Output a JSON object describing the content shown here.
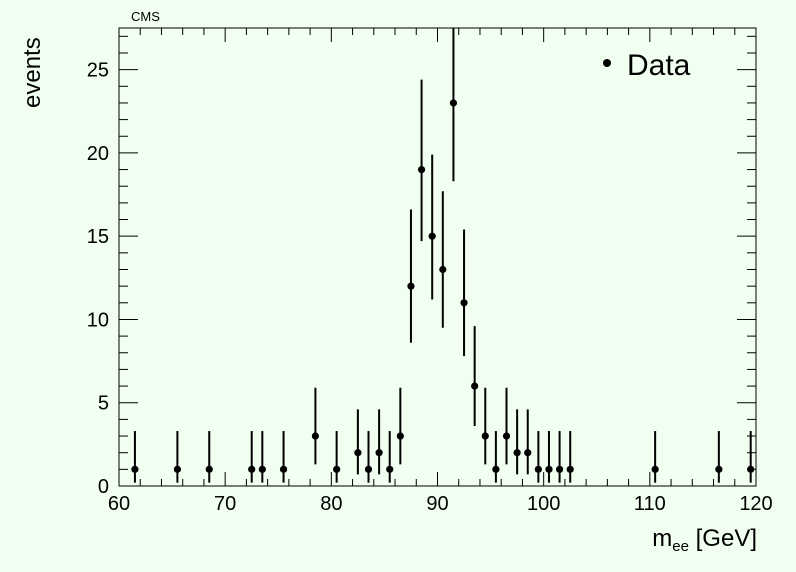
{
  "header": {
    "text": "CMS"
  },
  "chart_data": {
    "type": "scatter",
    "title": "",
    "xlabel": "m",
    "xlabel_sub": "ee",
    "xlabel_unit": " [GeV]",
    "ylabel": "events",
    "xlim": [
      60,
      120
    ],
    "ylim": [
      0,
      27.5
    ],
    "xticks": [
      60,
      70,
      80,
      90,
      100,
      110,
      120
    ],
    "yticks": [
      0,
      5,
      10,
      15,
      20,
      25
    ],
    "grid": false,
    "legend": {
      "position": "top-right",
      "entries": [
        "Data"
      ]
    },
    "series": [
      {
        "name": "Data",
        "color": "#000000",
        "marker": "circle",
        "points": [
          {
            "x": 61.5,
            "y": 1,
            "lo": 0.2,
            "hi": 3.3
          },
          {
            "x": 65.5,
            "y": 1,
            "lo": 0.2,
            "hi": 3.3
          },
          {
            "x": 68.5,
            "y": 1,
            "lo": 0.2,
            "hi": 3.3
          },
          {
            "x": 72.5,
            "y": 1,
            "lo": 0.2,
            "hi": 3.3
          },
          {
            "x": 73.5,
            "y": 1,
            "lo": 0.2,
            "hi": 3.3
          },
          {
            "x": 75.5,
            "y": 1,
            "lo": 0.2,
            "hi": 3.3
          },
          {
            "x": 78.5,
            "y": 3,
            "lo": 1.3,
            "hi": 5.9
          },
          {
            "x": 80.5,
            "y": 1,
            "lo": 0.2,
            "hi": 3.3
          },
          {
            "x": 82.5,
            "y": 2,
            "lo": 0.7,
            "hi": 4.6
          },
          {
            "x": 83.5,
            "y": 1,
            "lo": 0.2,
            "hi": 3.3
          },
          {
            "x": 84.5,
            "y": 2,
            "lo": 0.7,
            "hi": 4.6
          },
          {
            "x": 85.5,
            "y": 1,
            "lo": 0.2,
            "hi": 3.3
          },
          {
            "x": 86.5,
            "y": 3,
            "lo": 1.3,
            "hi": 5.9
          },
          {
            "x": 87.5,
            "y": 12,
            "lo": 8.6,
            "hi": 16.6
          },
          {
            "x": 88.5,
            "y": 19,
            "lo": 14.7,
            "hi": 24.4
          },
          {
            "x": 89.5,
            "y": 15,
            "lo": 11.2,
            "hi": 19.9
          },
          {
            "x": 90.5,
            "y": 13,
            "lo": 9.5,
            "hi": 17.7
          },
          {
            "x": 91.5,
            "y": 23,
            "lo": 18.3,
            "hi": 27.6
          },
          {
            "x": 92.5,
            "y": 11,
            "lo": 7.8,
            "hi": 15.4
          },
          {
            "x": 93.5,
            "y": 6,
            "lo": 3.6,
            "hi": 9.6
          },
          {
            "x": 94.5,
            "y": 3,
            "lo": 1.3,
            "hi": 5.9
          },
          {
            "x": 95.5,
            "y": 1,
            "lo": 0.2,
            "hi": 3.3
          },
          {
            "x": 96.5,
            "y": 3,
            "lo": 1.3,
            "hi": 5.9
          },
          {
            "x": 97.5,
            "y": 2,
            "lo": 0.7,
            "hi": 4.6
          },
          {
            "x": 98.5,
            "y": 2,
            "lo": 0.7,
            "hi": 4.6
          },
          {
            "x": 99.5,
            "y": 1,
            "lo": 0.2,
            "hi": 3.3
          },
          {
            "x": 100.5,
            "y": 1,
            "lo": 0.2,
            "hi": 3.3
          },
          {
            "x": 101.5,
            "y": 1,
            "lo": 0.2,
            "hi": 3.3
          },
          {
            "x": 102.5,
            "y": 1,
            "lo": 0.2,
            "hi": 3.3
          },
          {
            "x": 110.5,
            "y": 1,
            "lo": 0.2,
            "hi": 3.3
          },
          {
            "x": 116.5,
            "y": 1,
            "lo": 0.2,
            "hi": 3.3
          },
          {
            "x": 119.5,
            "y": 1,
            "lo": 0.2,
            "hi": 3.3
          }
        ]
      }
    ]
  }
}
